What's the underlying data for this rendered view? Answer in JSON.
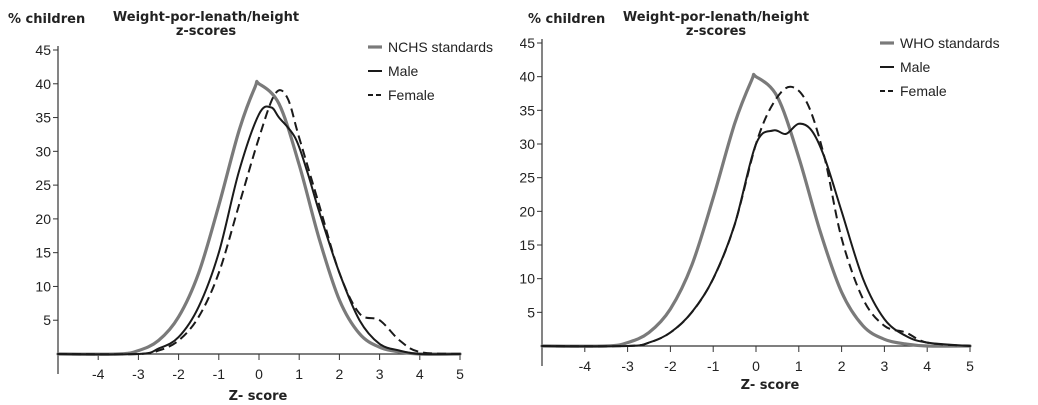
{
  "colors": {
    "standard": "#7a7a7a",
    "male": "#1a1a1a",
    "female": "#1a1a1a",
    "axis": "#333333"
  },
  "chart_data": [
    {
      "type": "line",
      "title": "Weight-por-lenath/height",
      "subtitle": "z-scores",
      "ylabel": "% children",
      "xlabel": "Z- score",
      "xlim": [
        -5,
        5
      ],
      "ylim": [
        0,
        45
      ],
      "x_ticks": [
        -4,
        -3,
        -2,
        -1,
        0,
        1,
        2,
        3,
        4,
        5
      ],
      "y_ticks": [
        5,
        10,
        15,
        20,
        25,
        30,
        35,
        40,
        45
      ],
      "grid": false,
      "legend_position": "top-right",
      "series": [
        {
          "name": "NCHS standards",
          "style": "solid-gray",
          "x": [
            -5,
            -3.5,
            -3,
            -2.5,
            -2,
            -1.5,
            -1,
            -0.5,
            -0.1,
            0,
            0.5,
            1,
            1.5,
            2,
            2.5,
            3,
            3.5,
            4,
            5
          ],
          "y": [
            0,
            0,
            0.5,
            2,
            5.5,
            12,
            22,
            33,
            39.5,
            40,
            37,
            28,
            17,
            8,
            3,
            1,
            0.3,
            0,
            0
          ]
        },
        {
          "name": "Male",
          "style": "solid-black",
          "x": [
            -5,
            -3,
            -2.5,
            -2,
            -1.5,
            -1,
            -0.5,
            0,
            0.3,
            0.5,
            0.9,
            1.2,
            1.5,
            2,
            2.5,
            3,
            3.5,
            4,
            5
          ],
          "y": [
            0,
            0,
            0.8,
            2.5,
            7,
            15,
            27,
            35.5,
            36.5,
            35,
            32,
            27,
            21,
            12,
            5,
            1.5,
            0.5,
            0,
            0
          ]
        },
        {
          "name": "Female",
          "style": "dashed-black",
          "x": [
            -5,
            -3,
            -2.5,
            -2,
            -1.5,
            -1,
            -0.5,
            0,
            0.4,
            0.7,
            1,
            1.5,
            2,
            2.5,
            3,
            3.5,
            4,
            5
          ],
          "y": [
            0,
            0,
            0.5,
            2,
            5.5,
            12,
            22,
            32,
            38.5,
            38,
            32,
            22,
            12,
            6,
            5,
            2,
            0.3,
            0
          ]
        }
      ]
    },
    {
      "type": "line",
      "title": "Weight-por-lenath/height",
      "subtitle": "z-scores",
      "ylabel": "% children",
      "xlabel": "Z- score",
      "xlim": [
        -5,
        5
      ],
      "ylim": [
        0,
        45
      ],
      "x_ticks": [
        -4,
        -3,
        -2,
        -1,
        0,
        1,
        2,
        3,
        4,
        5
      ],
      "y_ticks": [
        5,
        10,
        15,
        20,
        25,
        30,
        35,
        40,
        45
      ],
      "grid": false,
      "legend_position": "top-right",
      "series": [
        {
          "name": "WHO  standards",
          "style": "solid-gray",
          "x": [
            -5,
            -3.5,
            -3,
            -2.5,
            -2,
            -1.5,
            -1,
            -0.5,
            -0.1,
            0,
            0.5,
            1,
            1.5,
            2,
            2.5,
            3,
            3.5,
            4,
            5
          ],
          "y": [
            0,
            0,
            0.5,
            2,
            5.5,
            12,
            22,
            33,
            39.5,
            40,
            37,
            28,
            17,
            8,
            3,
            1,
            0.3,
            0,
            0
          ]
        },
        {
          "name": "Male",
          "style": "solid-black",
          "x": [
            -5,
            -3,
            -2.5,
            -2,
            -1.5,
            -1,
            -0.5,
            0,
            0.4,
            0.7,
            1,
            1.3,
            1.6,
            2,
            2.5,
            3,
            3.5,
            4,
            5
          ],
          "y": [
            0,
            0,
            0.5,
            2,
            5,
            10,
            18,
            30,
            32,
            31.5,
            33,
            32,
            28,
            20,
            10,
            4,
            1.5,
            0.5,
            0
          ]
        },
        {
          "name": "Female",
          "style": "dashed-black",
          "x": [
            -5,
            -3,
            -2.5,
            -2,
            -1.5,
            -1,
            -0.5,
            0,
            0.4,
            0.8,
            1.2,
            1.6,
            2,
            2.5,
            3,
            3.5,
            4,
            5
          ],
          "y": [
            0,
            0,
            0.5,
            2,
            5,
            10,
            18,
            30,
            36,
            38.5,
            36,
            28,
            16,
            7,
            3,
            2,
            0.5,
            0
          ]
        }
      ]
    }
  ]
}
